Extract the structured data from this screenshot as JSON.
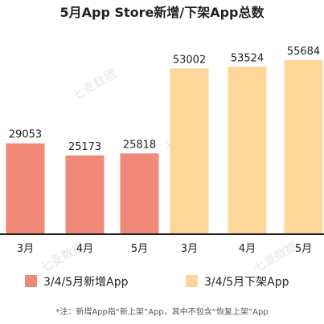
{
  "chart_data": {
    "type": "bar",
    "title": "5月App Store新增/下架App总数",
    "categories": [
      "3月",
      "4月",
      "5月",
      "3月",
      "4月",
      "5月"
    ],
    "series": [
      {
        "name": "3/4/5月新增App",
        "values": [
          29053,
          25173,
          25818,
          null,
          null,
          null
        ],
        "color": "#f0897a"
      },
      {
        "name": "3/4/5月下架App",
        "values": [
          null,
          null,
          null,
          53002,
          53524,
          55684
        ],
        "color": "#fdd79a"
      }
    ],
    "ylim": [
      0,
      60000
    ],
    "grid": false,
    "legend_position": "bottom",
    "axis_color": "#222222",
    "footnote": "*注：新增App指“新上架”App，其中不包含“恢复上架”App",
    "watermark": "七麦数据"
  }
}
